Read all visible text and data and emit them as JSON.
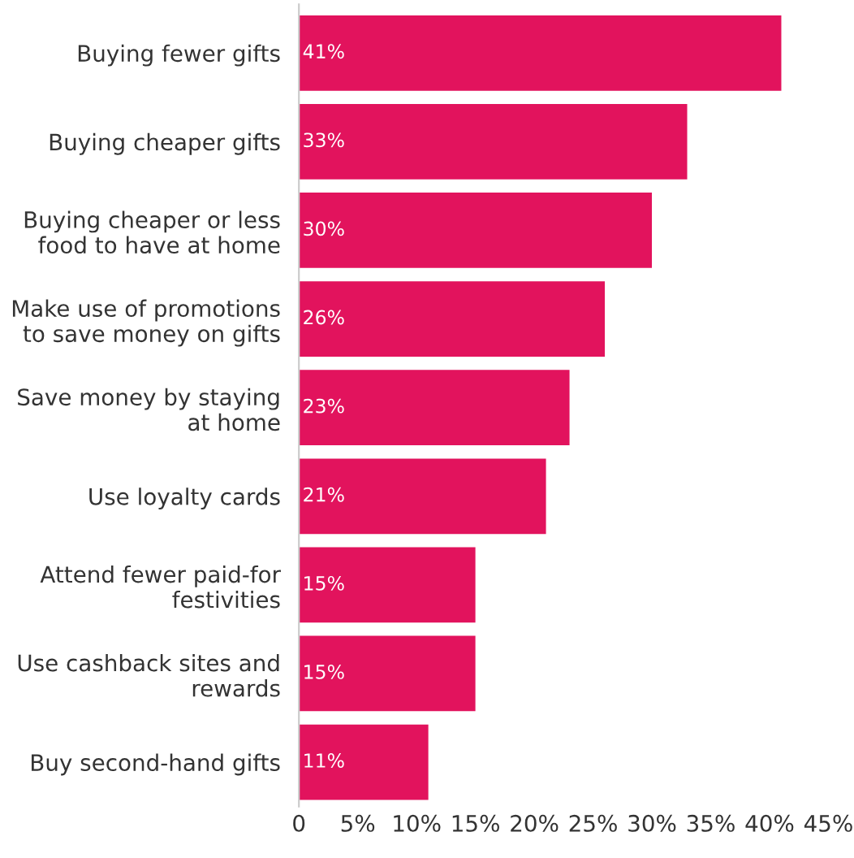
{
  "chart_data": {
    "type": "bar",
    "orientation": "horizontal",
    "categories": [
      "Buying fewer gifts",
      "Buying cheaper gifts",
      "Buying cheaper or less\nfood to have at home",
      "Make use of promotions\nto save money on gifts",
      "Save money by staying\nat home",
      "Use loyalty cards",
      "Attend fewer paid-for\nfestivities",
      "Use cashback sites and\nrewards",
      "Buy second-hand gifts"
    ],
    "values": [
      41,
      33,
      30,
      26,
      23,
      21,
      15,
      15,
      11
    ],
    "value_labels": [
      "41%",
      "33%",
      "30%",
      "26%",
      "23%",
      "21%",
      "15%",
      "15%",
      "11%"
    ],
    "color": "#e2135d",
    "xlim": [
      0,
      45
    ],
    "xticks": [
      0,
      {
        "value": 5,
        "label": "5%"
      },
      {
        "value": 10,
        "label": "10%"
      },
      {
        "value": 15,
        "label": "15%"
      },
      {
        "value": 20,
        "label": "20%"
      },
      {
        "value": 25,
        "label": "25%"
      },
      {
        "value": 30,
        "label": "30%"
      },
      {
        "value": 35,
        "label": "35%"
      },
      {
        "value": 40,
        "label": "40%"
      },
      {
        "value": 45,
        "label": "45%"
      }
    ],
    "grid": false,
    "legend": false
  }
}
